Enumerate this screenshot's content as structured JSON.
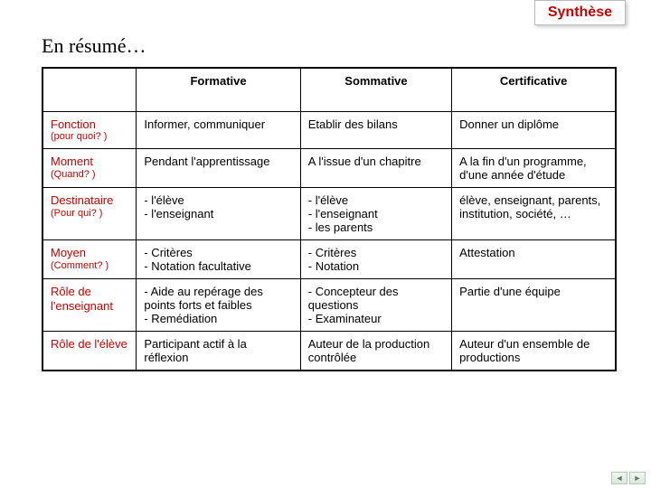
{
  "tag": "Synthèse",
  "title": "En résumé…",
  "headers": [
    "",
    "Formative",
    "Sommative",
    "Certificative"
  ],
  "rows": [
    {
      "label": "Fonction",
      "sub": "(pour quoi? )",
      "c1": "Informer, communiquer",
      "c2": "Etablir des bilans",
      "c3": "Donner un diplôme"
    },
    {
      "label": "Moment",
      "sub": "(Quand? )",
      "c1": "Pendant l'apprentissage",
      "c2": "A l'issue d'un chapitre",
      "c3": "A la fin d'un programme, d'une année d'étude"
    },
    {
      "label": "Destinataire",
      "sub": "(Pour qui? )",
      "c1": "- l'élève\n- l'enseignant",
      "c2": "- l'élève\n- l'enseignant\n- les parents",
      "c3": "élève, enseignant, parents, institution, société, …"
    },
    {
      "label": "Moyen",
      "sub": "(Comment? )",
      "c1": "- Critères\n- Notation facultative",
      "c2": "- Critères\n- Notation",
      "c3": "Attestation"
    },
    {
      "label": "Rôle de l'enseignant",
      "sub": "",
      "c1": "- Aide au repérage des points forts et faibles\n- Remédiation",
      "c2": " - Concepteur des questions\n -  Examinateur",
      "c3": "Partie d'une équipe"
    },
    {
      "label": "Rôle de l'élève",
      "sub": "",
      "c1": "Participant actif à la réflexion",
      "c2": "Auteur de la production contrôlée",
      "c3": "Auteur d'un ensemble de productions"
    }
  ],
  "colors": {
    "accent": "#cc0000",
    "text": "#000000",
    "border": "#000000",
    "background": "#ffffff"
  }
}
